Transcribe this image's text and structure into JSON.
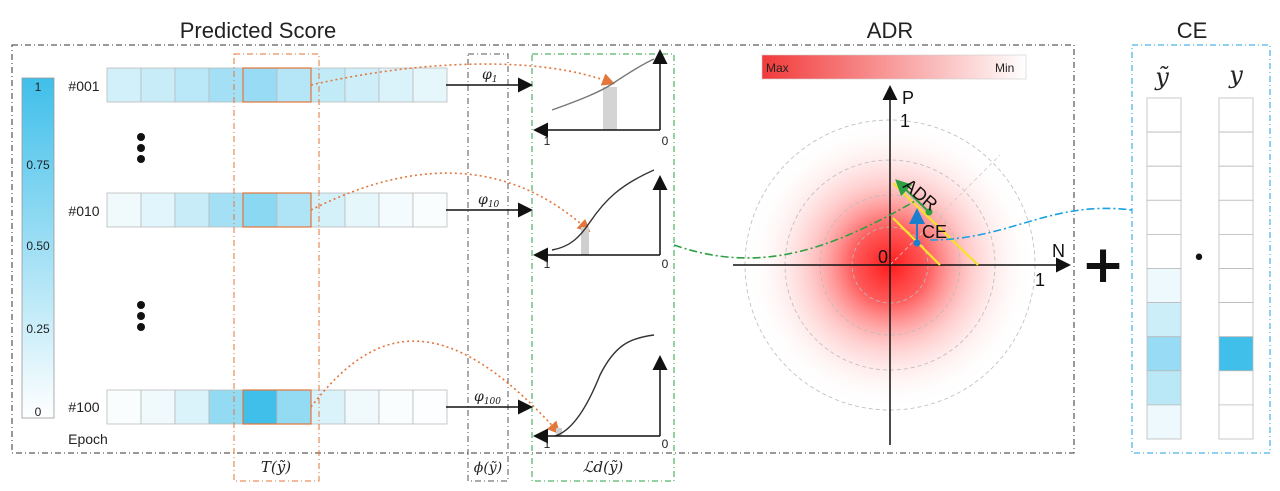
{
  "headers": {
    "predicted": "Predicted Score",
    "adr": "ADR",
    "ce": "CE"
  },
  "colorbar": {
    "ticks": [
      "1",
      "0.75",
      "0.50",
      "0.25",
      "0"
    ],
    "axis_label": "Epoch"
  },
  "epochs": [
    {
      "label": "#001",
      "phi": "φ",
      "phi_sub": "1",
      "cells": [
        0.15,
        0.18,
        0.22,
        0.3,
        0.34,
        0.24,
        0.2,
        0.16,
        0.12,
        0.08
      ]
    },
    {
      "label": "#010",
      "phi": "φ",
      "phi_sub": "10",
      "cells": [
        0.05,
        0.1,
        0.18,
        0.3,
        0.38,
        0.26,
        0.14,
        0.08,
        0.04,
        0.02
      ]
    },
    {
      "label": "#100",
      "phi": "φ",
      "phi_sub": "100",
      "cells": [
        0.02,
        0.05,
        0.12,
        0.35,
        0.65,
        0.35,
        0.12,
        0.05,
        0.02,
        0.01
      ]
    }
  ],
  "bottom_labels": {
    "t": "T(ỹ)",
    "phi": "ϕ(ỹ)",
    "ld": "ℒd(ỹ)"
  },
  "mini_plot": {
    "x_left": "1",
    "x_right": "0"
  },
  "adr_plot": {
    "colorbar_max": "Max",
    "colorbar_min": "Min",
    "p_label": "P",
    "n_label": "N",
    "origin": "0",
    "p_one": "1",
    "n_one": "1",
    "adr_arrow": "ADR",
    "ce_arrow": "CE"
  },
  "ce_panel": {
    "ytilde": "ỹ",
    "y": "y",
    "operator": "+",
    "dot": "•",
    "ytilde_cells": [
      0,
      0,
      0,
      0,
      0,
      0.05,
      0.15,
      0.3,
      0.2,
      0.05
    ],
    "y_cells": [
      0,
      0,
      0,
      0,
      0,
      0,
      0,
      1,
      0,
      0
    ]
  },
  "colors": {
    "cyan": "#3fbfea",
    "orange": "#e3763a",
    "green": "#2ea043",
    "red": "#e8232a",
    "yellow": "#f5e42a",
    "blue_dash": "#1ba1e2"
  }
}
